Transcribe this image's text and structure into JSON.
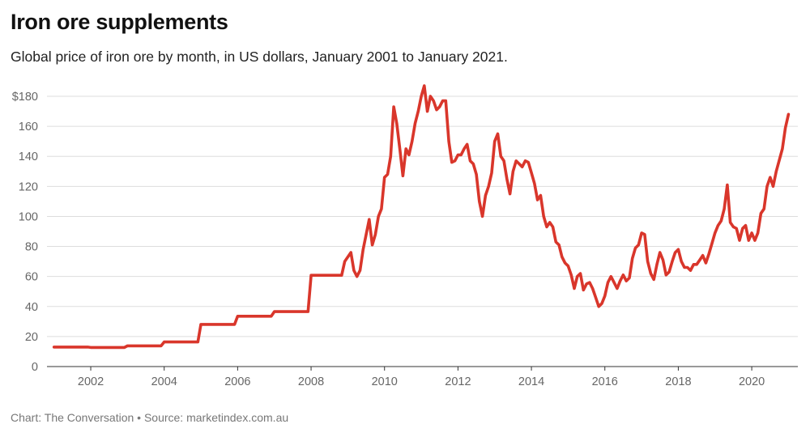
{
  "title": "Iron ore supplements",
  "subtitle": "Global price of iron ore by month, in US dollars, January 2001 to January 2021.",
  "footer": "Chart: The Conversation • Source: marketindex.com.au",
  "chart_data": {
    "type": "line",
    "title": "Iron ore supplements",
    "xlabel": "",
    "ylabel": "",
    "ylim": [
      0,
      180
    ],
    "xlim": [
      "2001-01",
      "2021-01"
    ],
    "grid": "horizontal",
    "line_color": "#d9362b",
    "y_ticks": [
      {
        "value": 0,
        "label": "0"
      },
      {
        "value": 20,
        "label": "20"
      },
      {
        "value": 40,
        "label": "40"
      },
      {
        "value": 60,
        "label": "60"
      },
      {
        "value": 80,
        "label": "80"
      },
      {
        "value": 100,
        "label": "100"
      },
      {
        "value": 120,
        "label": "120"
      },
      {
        "value": 140,
        "label": "140"
      },
      {
        "value": 160,
        "label": "160"
      },
      {
        "value": 180,
        "label": "$180"
      }
    ],
    "x_ticks": [
      "2002",
      "2004",
      "2006",
      "2008",
      "2010",
      "2012",
      "2014",
      "2016",
      "2018",
      "2020"
    ],
    "series": [
      {
        "points": [
          [
            "2001-01",
            13
          ],
          [
            "2001-12",
            13
          ],
          [
            "2002-01",
            12.7
          ],
          [
            "2002-12",
            12.7
          ],
          [
            "2003-01",
            13.8
          ],
          [
            "2003-12",
            13.8
          ],
          [
            "2004-01",
            16.4
          ],
          [
            "2004-12",
            16.4
          ],
          [
            "2005-01",
            28.1
          ],
          [
            "2005-12",
            28.1
          ],
          [
            "2006-01",
            33.5
          ],
          [
            "2006-12",
            33.5
          ],
          [
            "2007-01",
            36.6
          ],
          [
            "2007-12",
            36.6
          ],
          [
            "2008-01",
            60.8
          ],
          [
            "2008-11",
            60.8
          ],
          [
            "2008-12",
            70
          ],
          [
            "2009-02",
            76
          ],
          [
            "2009-03",
            64
          ],
          [
            "2009-04",
            60
          ],
          [
            "2009-05",
            64
          ],
          [
            "2009-06",
            78
          ],
          [
            "2009-08",
            98
          ],
          [
            "2009-09",
            81
          ],
          [
            "2009-10",
            88
          ],
          [
            "2009-11",
            100
          ],
          [
            "2009-12",
            105
          ],
          [
            "2010-01",
            126
          ],
          [
            "2010-02",
            128
          ],
          [
            "2010-03",
            140
          ],
          [
            "2010-04",
            173
          ],
          [
            "2010-05",
            162
          ],
          [
            "2010-06",
            145
          ],
          [
            "2010-07",
            127
          ],
          [
            "2010-08",
            145
          ],
          [
            "2010-09",
            141
          ],
          [
            "2010-10",
            150
          ],
          [
            "2010-11",
            162
          ],
          [
            "2010-12",
            170
          ],
          [
            "2011-01",
            180
          ],
          [
            "2011-02",
            187
          ],
          [
            "2011-03",
            170
          ],
          [
            "2011-04",
            180
          ],
          [
            "2011-05",
            177
          ],
          [
            "2011-06",
            171
          ],
          [
            "2011-07",
            173
          ],
          [
            "2011-08",
            177
          ],
          [
            "2011-09",
            177
          ],
          [
            "2011-10",
            150
          ],
          [
            "2011-11",
            136
          ],
          [
            "2011-12",
            137
          ],
          [
            "2012-01",
            141
          ],
          [
            "2012-02",
            141
          ],
          [
            "2012-03",
            145
          ],
          [
            "2012-04",
            148
          ],
          [
            "2012-05",
            137
          ],
          [
            "2012-06",
            135
          ],
          [
            "2012-07",
            128
          ],
          [
            "2012-08",
            110
          ],
          [
            "2012-09",
            100
          ],
          [
            "2012-10",
            114
          ],
          [
            "2012-11",
            120
          ],
          [
            "2012-12",
            129
          ],
          [
            "2013-01",
            150
          ],
          [
            "2013-02",
            155
          ],
          [
            "2013-03",
            140
          ],
          [
            "2013-04",
            137
          ],
          [
            "2013-05",
            125
          ],
          [
            "2013-06",
            115
          ],
          [
            "2013-07",
            130
          ],
          [
            "2013-08",
            137
          ],
          [
            "2013-09",
            135
          ],
          [
            "2013-10",
            133
          ],
          [
            "2013-11",
            137
          ],
          [
            "2013-12",
            136
          ],
          [
            "2014-01",
            129
          ],
          [
            "2014-02",
            122
          ],
          [
            "2014-03",
            111
          ],
          [
            "2014-04",
            114
          ],
          [
            "2014-05",
            100
          ],
          [
            "2014-06",
            93
          ],
          [
            "2014-07",
            96
          ],
          [
            "2014-08",
            93
          ],
          [
            "2014-09",
            83
          ],
          [
            "2014-10",
            81
          ],
          [
            "2014-11",
            73
          ],
          [
            "2014-12",
            69
          ],
          [
            "2015-01",
            67
          ],
          [
            "2015-02",
            61
          ],
          [
            "2015-03",
            52
          ],
          [
            "2015-04",
            60
          ],
          [
            "2015-05",
            62
          ],
          [
            "2015-06",
            51
          ],
          [
            "2015-07",
            55
          ],
          [
            "2015-08",
            56
          ],
          [
            "2015-09",
            52
          ],
          [
            "2015-10",
            46
          ],
          [
            "2015-11",
            40
          ],
          [
            "2015-12",
            42
          ],
          [
            "2016-01",
            47
          ],
          [
            "2016-02",
            56
          ],
          [
            "2016-03",
            60
          ],
          [
            "2016-04",
            56
          ],
          [
            "2016-05",
            52
          ],
          [
            "2016-06",
            57
          ],
          [
            "2016-07",
            61
          ],
          [
            "2016-08",
            57
          ],
          [
            "2016-09",
            59
          ],
          [
            "2016-10",
            72
          ],
          [
            "2016-11",
            79
          ],
          [
            "2016-12",
            81
          ],
          [
            "2017-01",
            89
          ],
          [
            "2017-02",
            88
          ],
          [
            "2017-03",
            70
          ],
          [
            "2017-04",
            62
          ],
          [
            "2017-05",
            58
          ],
          [
            "2017-06",
            68
          ],
          [
            "2017-07",
            76
          ],
          [
            "2017-08",
            71
          ],
          [
            "2017-09",
            61
          ],
          [
            "2017-10",
            63
          ],
          [
            "2017-11",
            70
          ],
          [
            "2017-12",
            76
          ],
          [
            "2018-01",
            78
          ],
          [
            "2018-02",
            70
          ],
          [
            "2018-03",
            66
          ],
          [
            "2018-04",
            66
          ],
          [
            "2018-05",
            64
          ],
          [
            "2018-06",
            68
          ],
          [
            "2018-07",
            68
          ],
          [
            "2018-08",
            71
          ],
          [
            "2018-09",
            74
          ],
          [
            "2018-10",
            69
          ],
          [
            "2018-11",
            75
          ],
          [
            "2018-12",
            82
          ],
          [
            "2019-01",
            89
          ],
          [
            "2019-02",
            94
          ],
          [
            "2019-03",
            97
          ],
          [
            "2019-04",
            105
          ],
          [
            "2019-05",
            121
          ],
          [
            "2019-06",
            96
          ],
          [
            "2019-07",
            93
          ],
          [
            "2019-08",
            92
          ],
          [
            "2019-09",
            84
          ],
          [
            "2019-10",
            92
          ],
          [
            "2019-11",
            94
          ],
          [
            "2019-12",
            84
          ],
          [
            "2020-01",
            89
          ],
          [
            "2020-02",
            84
          ],
          [
            "2020-03",
            89
          ],
          [
            "2020-04",
            102
          ],
          [
            "2020-05",
            105
          ],
          [
            "2020-06",
            120
          ],
          [
            "2020-07",
            126
          ],
          [
            "2020-08",
            120
          ],
          [
            "2020-09",
            130
          ],
          [
            "2020-11",
            145
          ],
          [
            "2020-12",
            159
          ],
          [
            "2021-01",
            168
          ]
        ]
      }
    ]
  }
}
